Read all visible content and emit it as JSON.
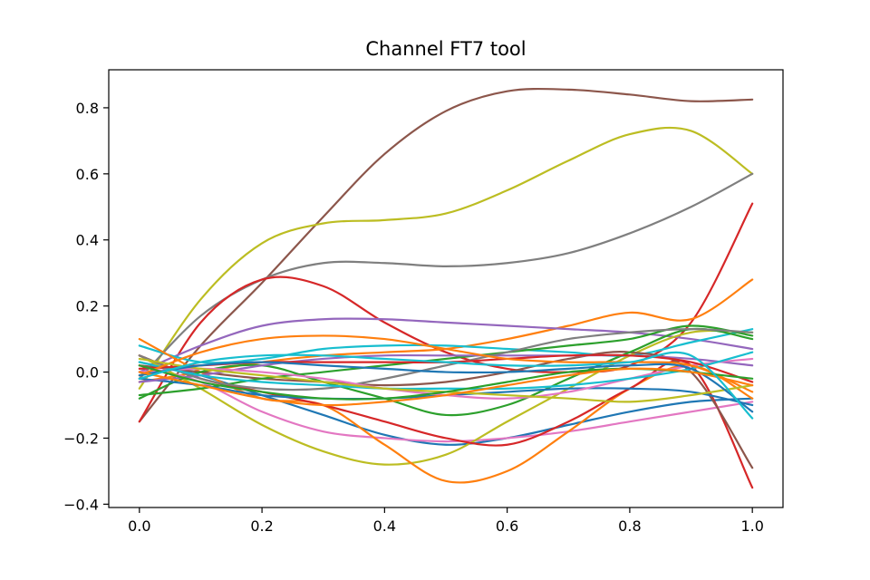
{
  "chart_data": {
    "type": "line",
    "title": "Channel FT7 tool",
    "xlabel": "",
    "ylabel": "",
    "xlim": [
      -0.05,
      1.05
    ],
    "ylim": [
      -0.41,
      0.915
    ],
    "xticks": [
      0.0,
      0.2,
      0.4,
      0.6,
      0.8,
      1.0
    ],
    "xtick_labels": [
      "0.0",
      "0.2",
      "0.4",
      "0.6",
      "0.8",
      "1.0"
    ],
    "yticks": [
      -0.4,
      -0.2,
      0.0,
      0.2,
      0.4,
      0.6,
      0.8
    ],
    "ytick_labels": [
      "−0.4",
      "−0.2",
      "0.0",
      "0.2",
      "0.4",
      "0.6",
      "0.8"
    ],
    "grid": false,
    "legend": "none",
    "series": [
      {
        "color": "#8c564b",
        "x": [
          0,
          0.1,
          0.2,
          0.3,
          0.4,
          0.5,
          0.6,
          0.7,
          0.8,
          0.9,
          1.0
        ],
        "y": [
          -0.15,
          0.08,
          0.27,
          0.47,
          0.66,
          0.79,
          0.85,
          0.855,
          0.84,
          0.82,
          0.825
        ]
      },
      {
        "color": "#bcbd22",
        "x": [
          0,
          0.1,
          0.2,
          0.3,
          0.4,
          0.5,
          0.6,
          0.7,
          0.8,
          0.9,
          1.0
        ],
        "y": [
          -0.05,
          0.22,
          0.39,
          0.45,
          0.46,
          0.48,
          0.55,
          0.64,
          0.72,
          0.73,
          0.6
        ]
      },
      {
        "color": "#7f7f7f",
        "x": [
          0,
          0.1,
          0.2,
          0.3,
          0.4,
          0.5,
          0.6,
          0.7,
          0.8,
          0.9,
          1.0
        ],
        "y": [
          -0.02,
          0.17,
          0.28,
          0.33,
          0.33,
          0.32,
          0.33,
          0.36,
          0.42,
          0.5,
          0.6
        ]
      },
      {
        "color": "#d62728",
        "x": [
          0,
          0.1,
          0.2,
          0.3,
          0.4,
          0.5,
          0.6,
          0.7,
          0.8,
          0.9,
          1.0
        ],
        "y": [
          -0.15,
          0.15,
          0.28,
          0.26,
          0.15,
          0.06,
          0.01,
          0.0,
          0.02,
          0.15,
          0.51
        ]
      },
      {
        "color": "#ff7f0e",
        "x": [
          0,
          0.1,
          0.2,
          0.3,
          0.4,
          0.5,
          0.6,
          0.7,
          0.8,
          0.9,
          1.0
        ],
        "y": [
          -0.03,
          0.0,
          0.03,
          0.05,
          0.06,
          0.07,
          0.1,
          0.14,
          0.18,
          0.16,
          0.28
        ]
      },
      {
        "color": "#9467bd",
        "x": [
          0,
          0.1,
          0.2,
          0.3,
          0.4,
          0.5,
          0.6,
          0.7,
          0.8,
          0.9,
          1.0
        ],
        "y": [
          0.0,
          0.08,
          0.14,
          0.16,
          0.16,
          0.15,
          0.14,
          0.13,
          0.12,
          0.1,
          0.07
        ]
      },
      {
        "color": "#17becf",
        "x": [
          0,
          0.1,
          0.2,
          0.3,
          0.4,
          0.5,
          0.6,
          0.7,
          0.8,
          0.9,
          1.0
        ],
        "y": [
          0.08,
          0.03,
          0.04,
          0.07,
          0.08,
          0.08,
          0.07,
          0.06,
          0.05,
          0.09,
          0.13
        ]
      },
      {
        "color": "#1f77b4",
        "x": [
          0,
          0.1,
          0.2,
          0.3,
          0.4,
          0.5,
          0.6,
          0.7,
          0.8,
          0.9,
          1.0
        ],
        "y": [
          0.03,
          -0.01,
          -0.07,
          -0.13,
          -0.19,
          -0.22,
          -0.2,
          -0.16,
          -0.12,
          -0.09,
          -0.08
        ]
      },
      {
        "color": "#e377c2",
        "x": [
          0,
          0.1,
          0.2,
          0.3,
          0.4,
          0.5,
          0.6,
          0.7,
          0.8,
          0.9,
          1.0
        ],
        "y": [
          0.02,
          -0.03,
          -0.12,
          -0.18,
          -0.2,
          -0.21,
          -0.2,
          -0.18,
          -0.15,
          -0.12,
          -0.09
        ]
      },
      {
        "color": "#bcbd22",
        "x": [
          0,
          0.1,
          0.2,
          0.3,
          0.4,
          0.5,
          0.6,
          0.7,
          0.8,
          0.9,
          1.0
        ],
        "y": [
          0.05,
          -0.05,
          -0.16,
          -0.24,
          -0.28,
          -0.25,
          -0.15,
          -0.05,
          0.05,
          0.12,
          0.12
        ]
      },
      {
        "color": "#ff7f0e",
        "x": [
          0,
          0.1,
          0.2,
          0.3,
          0.4,
          0.5,
          0.6,
          0.7,
          0.8,
          0.9,
          1.0
        ],
        "y": [
          0.1,
          0.0,
          -0.08,
          -0.1,
          -0.22,
          -0.33,
          -0.3,
          -0.18,
          -0.05,
          0.02,
          -0.08
        ]
      },
      {
        "color": "#d62728",
        "x": [
          0,
          0.1,
          0.2,
          0.3,
          0.4,
          0.5,
          0.6,
          0.7,
          0.8,
          0.9,
          1.0
        ],
        "y": [
          0.05,
          -0.02,
          -0.06,
          -0.1,
          -0.15,
          -0.2,
          -0.22,
          -0.15,
          -0.05,
          0.02,
          -0.35
        ]
      },
      {
        "color": "#8c564b",
        "x": [
          0,
          0.1,
          0.2,
          0.3,
          0.4,
          0.5,
          0.6,
          0.7,
          0.8,
          0.9,
          1.0
        ],
        "y": [
          0.02,
          0.0,
          -0.02,
          -0.03,
          -0.04,
          -0.03,
          0.0,
          0.04,
          0.06,
          0.0,
          -0.29
        ]
      },
      {
        "color": "#2ca02c",
        "x": [
          0,
          0.1,
          0.2,
          0.3,
          0.4,
          0.5,
          0.6,
          0.7,
          0.8,
          0.9,
          1.0
        ],
        "y": [
          -0.07,
          -0.05,
          -0.02,
          0.0,
          0.02,
          0.04,
          0.06,
          0.08,
          0.1,
          0.14,
          0.11
        ]
      },
      {
        "color": "#2ca02c",
        "x": [
          0,
          0.1,
          0.2,
          0.3,
          0.4,
          0.5,
          0.6,
          0.7,
          0.8,
          0.9,
          1.0
        ],
        "y": [
          -0.08,
          0.0,
          0.02,
          -0.03,
          -0.08,
          -0.13,
          -0.1,
          -0.02,
          0.06,
          0.13,
          0.1
        ]
      },
      {
        "color": "#1f77b4",
        "x": [
          0,
          0.1,
          0.2,
          0.3,
          0.4,
          0.5,
          0.6,
          0.7,
          0.8,
          0.9,
          1.0
        ],
        "y": [
          -0.02,
          -0.04,
          -0.07,
          -0.08,
          -0.08,
          -0.07,
          -0.06,
          -0.05,
          -0.05,
          -0.06,
          -0.1
        ]
      },
      {
        "color": "#9467bd",
        "x": [
          0,
          0.1,
          0.2,
          0.3,
          0.4,
          0.5,
          0.6,
          0.7,
          0.8,
          0.9,
          1.0
        ],
        "y": [
          -0.03,
          -0.01,
          0.02,
          0.04,
          0.05,
          0.05,
          0.05,
          0.05,
          0.05,
          0.04,
          0.02
        ]
      },
      {
        "color": "#7f7f7f",
        "x": [
          0,
          0.1,
          0.2,
          0.3,
          0.4,
          0.5,
          0.6,
          0.7,
          0.8,
          0.9,
          1.0
        ],
        "y": [
          0.05,
          -0.02,
          -0.05,
          -0.05,
          -0.02,
          0.02,
          0.06,
          0.1,
          0.12,
          0.13,
          0.12
        ]
      },
      {
        "color": "#e377c2",
        "x": [
          0,
          0.1,
          0.2,
          0.3,
          0.4,
          0.5,
          0.6,
          0.7,
          0.8,
          0.9,
          1.0
        ],
        "y": [
          0.0,
          0.01,
          0.0,
          -0.02,
          -0.05,
          -0.07,
          -0.08,
          -0.06,
          -0.02,
          0.02,
          0.04
        ]
      },
      {
        "color": "#17becf",
        "x": [
          0,
          0.1,
          0.2,
          0.3,
          0.4,
          0.5,
          0.6,
          0.7,
          0.8,
          0.9,
          1.0
        ],
        "y": [
          0.03,
          -0.01,
          -0.03,
          -0.04,
          -0.05,
          -0.05,
          -0.05,
          -0.04,
          -0.02,
          0.01,
          0.06
        ]
      },
      {
        "color": "#d62728",
        "x": [
          0,
          0.1,
          0.2,
          0.3,
          0.4,
          0.5,
          0.6,
          0.7,
          0.8,
          0.9,
          1.0
        ],
        "y": [
          0.01,
          0.02,
          0.03,
          0.03,
          0.03,
          0.03,
          0.04,
          0.05,
          0.05,
          0.03,
          -0.03
        ]
      },
      {
        "color": "#ff7f0e",
        "x": [
          0,
          0.1,
          0.2,
          0.3,
          0.4,
          0.5,
          0.6,
          0.7,
          0.8,
          0.9,
          1.0
        ],
        "y": [
          -0.01,
          0.06,
          0.1,
          0.11,
          0.1,
          0.07,
          0.04,
          0.03,
          0.03,
          0.02,
          -0.06
        ]
      },
      {
        "color": "#bcbd22",
        "x": [
          0,
          0.1,
          0.2,
          0.3,
          0.4,
          0.5,
          0.6,
          0.7,
          0.8,
          0.9,
          1.0
        ],
        "y": [
          0.04,
          0.01,
          -0.01,
          -0.03,
          -0.05,
          -0.06,
          -0.07,
          -0.08,
          -0.09,
          -0.07,
          -0.04
        ]
      },
      {
        "color": "#1f77b4",
        "x": [
          0,
          0.1,
          0.2,
          0.3,
          0.4,
          0.5,
          0.6,
          0.7,
          0.8,
          0.9,
          1.0
        ],
        "y": [
          -0.01,
          0.02,
          0.03,
          0.02,
          0.01,
          0.0,
          0.0,
          0.01,
          0.02,
          0.01,
          -0.12
        ]
      },
      {
        "color": "#2ca02c",
        "x": [
          0,
          0.1,
          0.2,
          0.3,
          0.4,
          0.5,
          0.6,
          0.7,
          0.8,
          0.9,
          1.0
        ],
        "y": [
          0.02,
          -0.03,
          -0.06,
          -0.08,
          -0.08,
          -0.06,
          -0.03,
          0.0,
          0.01,
          0.0,
          -0.02
        ]
      },
      {
        "color": "#ff7f0e",
        "x": [
          0,
          0.1,
          0.2,
          0.3,
          0.4,
          0.5,
          0.6,
          0.7,
          0.8,
          0.9,
          1.0
        ],
        "y": [
          0.0,
          -0.04,
          -0.08,
          -0.1,
          -0.09,
          -0.07,
          -0.04,
          -0.01,
          0.01,
          0.0,
          -0.04
        ]
      },
      {
        "color": "#17becf",
        "x": [
          0,
          0.1,
          0.2,
          0.3,
          0.4,
          0.5,
          0.6,
          0.7,
          0.8,
          0.9,
          1.0
        ],
        "y": [
          -0.02,
          0.03,
          0.05,
          0.05,
          0.04,
          0.03,
          0.02,
          0.02,
          0.03,
          0.05,
          -0.14
        ]
      }
    ]
  }
}
